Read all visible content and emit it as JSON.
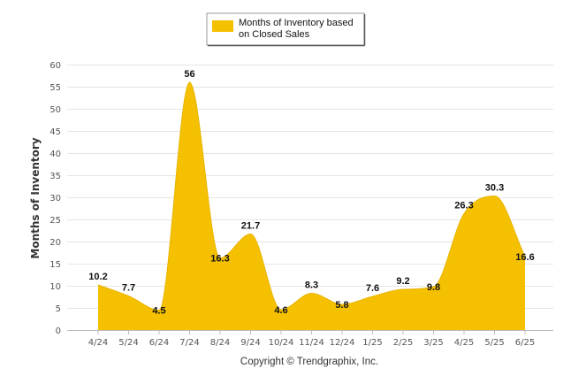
{
  "chart_data": {
    "type": "area",
    "categories": [
      "4/24",
      "5/24",
      "6/24",
      "7/24",
      "8/24",
      "9/24",
      "10/24",
      "11/24",
      "12/24",
      "1/25",
      "2/25",
      "3/25",
      "4/25",
      "5/25",
      "6/25"
    ],
    "series": [
      {
        "name": "Months of Inventory based on Closed Sales",
        "values": [
          10.2,
          7.7,
          4.5,
          56,
          16.3,
          21.7,
          4.6,
          8.3,
          5.8,
          7.6,
          9.2,
          9.8,
          26.3,
          30.3,
          16.6
        ],
        "data_labels": [
          "10.2",
          "7.7",
          "4.5",
          "56",
          "16.3",
          "21.7",
          "4.6",
          "8.3",
          "5.8",
          "7.6",
          "9.2",
          "9.8",
          "26.3",
          "30.3",
          "16.6"
        ],
        "color": "#F5C000"
      }
    ],
    "ylabel": "Months of Inventory",
    "xlabel": "",
    "ylim": [
      0,
      60
    ],
    "y_ticks": [
      "0",
      "5",
      "10",
      "15",
      "20",
      "25",
      "30",
      "35",
      "40",
      "45",
      "50",
      "55",
      "60"
    ],
    "grid": true,
    "smooth": true,
    "legend": {
      "position": "top-center",
      "lines": [
        "Months of Inventory based",
        "on Closed Sales"
      ]
    }
  },
  "footer": {
    "credit": "Copyright © Trendgraphix, Inc."
  },
  "colors": {
    "series": "#F5C000",
    "grid": "#E6E6E6",
    "background": "#FFFFFF"
  }
}
